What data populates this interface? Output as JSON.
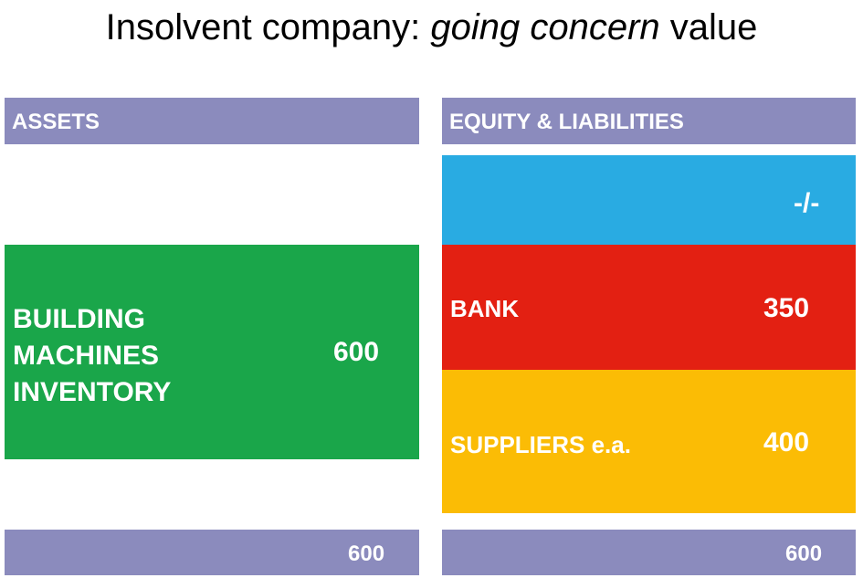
{
  "title": {
    "prefix": "Insolvent company: ",
    "emphasis": "going concern",
    "suffix": " value"
  },
  "assets": {
    "header": "ASSETS",
    "items": [
      "BUILDING",
      "MACHINES",
      "INVENTORY"
    ],
    "value": 600,
    "total": 600
  },
  "equity_liabilities": {
    "header": "EQUITY & LIABILITIES",
    "equity": "-/-",
    "bank": {
      "label": "BANK",
      "value": 350
    },
    "suppliers": {
      "label": "SUPPLIERS e.a.",
      "value": 400
    },
    "total": 600
  }
}
